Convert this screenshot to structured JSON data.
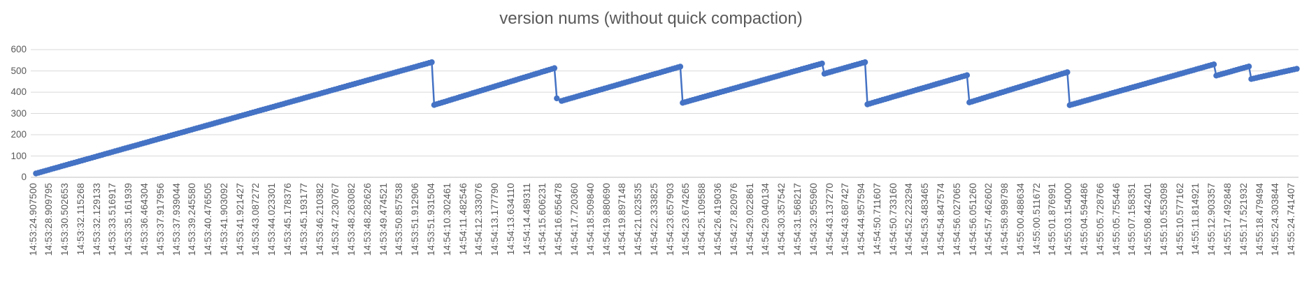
{
  "chart_data": {
    "type": "line",
    "title": "version nums (without quick compaction)",
    "xlabel": "",
    "ylabel": "",
    "ylim": [
      0,
      600
    ],
    "y_ticks": [
      0,
      100,
      200,
      300,
      400,
      500,
      600
    ],
    "grid": true,
    "legend": false,
    "colors": {
      "series": "#4472C4",
      "grid": "#D9D9D9",
      "axis": "#BFBFBF",
      "text": "#595959"
    },
    "x_labels": [
      "14:53:24.907500",
      "14:53:28.909795",
      "14:53:30.502653",
      "14:53:32.115268",
      "14:53:32.129133",
      "14:53:33.516917",
      "14:53:35.161939",
      "14:53:36.464304",
      "14:53:37.917956",
      "14:53:37.939044",
      "14:53:39.245580",
      "14:53:40.476505",
      "14:53:41.903092",
      "14:53:41.921427",
      "14:53:43.087272",
      "14:53:44.023301",
      "14:53:45.178376",
      "14:53:45.193177",
      "14:53:46.210382",
      "14:53:47.230767",
      "14:53:48.263082",
      "14:53:48.282626",
      "14:53:49.474521",
      "14:53:50.857538",
      "14:53:51.912906",
      "14:53:51.931504",
      "14:54:10.302461",
      "14:54:11.482546",
      "14:54:12.333076",
      "14:54:13.177790",
      "14:54:13.634110",
      "14:54:14.489311",
      "14:54:15.606231",
      "14:54:16.656478",
      "14:54:17.720360",
      "14:54:18.509840",
      "14:54:19.880690",
      "14:54:19.897148",
      "14:54:21.023535",
      "14:54:22.333825",
      "14:54:23.657903",
      "14:54:23.674265",
      "14:54:25.109588",
      "14:54:26.419036",
      "14:54:27.820976",
      "14:54:29.022861",
      "14:54:29.040134",
      "14:54:30.357542",
      "14:54:31.568217",
      "14:54:32.955960",
      "14:54:43.137270",
      "14:54:43.687427",
      "14:54:44.957594",
      "14:54:50.711607",
      "14:54:50.733160",
      "14:54:52.223294",
      "14:54:53.483465",
      "14:54:54.847574",
      "14:54:56.027065",
      "14:54:56.051260",
      "14:54:57.462602",
      "14:54:58.998798",
      "14:55:00.488634",
      "14:55:00.511672",
      "14:55:01.876991",
      "14:55:03.154000",
      "14:55:04.594486",
      "14:55:05.728766",
      "14:55:05.755446",
      "14:55:07.158351",
      "14:55:08.442401",
      "14:55:10.553098",
      "14:55:10.577162",
      "14:55:11.814921",
      "14:55:12.903357",
      "14:55:17.492848",
      "14:55:17.521932",
      "14:55:18.479494",
      "14:55:24.303844",
      "14:55:24.741407"
    ],
    "series": [
      {
        "name": "version nums",
        "marker": "circle",
        "keypoints_index_value": [
          [
            0.15,
            18
          ],
          [
            25.0,
            541
          ],
          [
            25.15,
            340
          ],
          [
            32.7,
            513
          ],
          [
            32.85,
            371
          ],
          [
            33.15,
            359
          ],
          [
            40.6,
            520
          ],
          [
            40.75,
            350
          ],
          [
            49.5,
            535
          ],
          [
            49.65,
            487
          ],
          [
            52.2,
            541
          ],
          [
            52.35,
            343
          ],
          [
            58.6,
            480
          ],
          [
            58.75,
            352
          ],
          [
            64.9,
            494
          ],
          [
            65.05,
            339
          ],
          [
            74.1,
            531
          ],
          [
            74.25,
            478
          ],
          [
            76.3,
            521
          ],
          [
            76.45,
            462
          ],
          [
            79.3,
            510
          ]
        ]
      }
    ]
  }
}
